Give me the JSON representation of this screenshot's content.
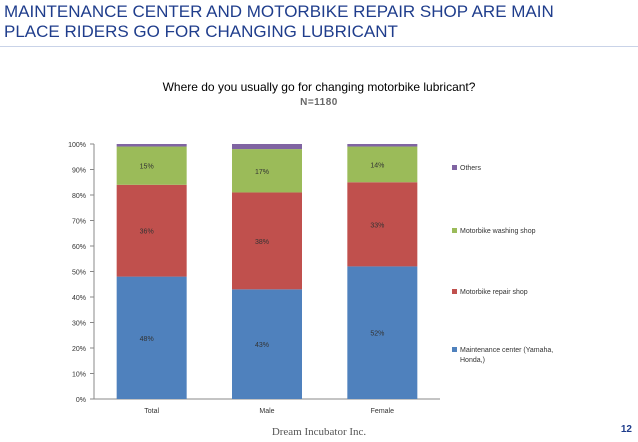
{
  "slide": {
    "title_line1": "MAINTENANCE CENTER AND MOTORBIKE REPAIR SHOP ARE MAIN",
    "title_line2": "PLACE RIDERS GO FOR CHANGING LUBRICANT",
    "question": "Where do you usually go for changing motorbike lubricant?",
    "sample_size": "N=1180",
    "footer": "Dream Incubator Inc.",
    "page_number": "12"
  },
  "chart_data": {
    "type": "bar",
    "stacked": true,
    "categories": [
      "Total",
      "Male",
      "Female"
    ],
    "ylim": [
      0,
      100
    ],
    "yticks": [
      0,
      10,
      20,
      30,
      40,
      50,
      60,
      70,
      80,
      90,
      100
    ],
    "ytick_labels": [
      "0%",
      "10%",
      "20%",
      "30%",
      "40%",
      "50%",
      "60%",
      "70%",
      "80%",
      "90%",
      "100%"
    ],
    "legend_position": "right",
    "series": [
      {
        "name": "Maintenance center (Yamaha, Honda,)",
        "legend_lines": [
          "Maintenance center (Yamaha,",
          "Honda,)"
        ],
        "color": "#4f81bd",
        "values": [
          48,
          43,
          52
        ],
        "labels": [
          "48%",
          "43%",
          "52%"
        ]
      },
      {
        "name": "Motorbike repair shop",
        "legend_lines": [
          "Motorbike repair shop"
        ],
        "color": "#c0504d",
        "values": [
          36,
          38,
          33
        ],
        "labels": [
          "36%",
          "38%",
          "33%"
        ]
      },
      {
        "name": "Motorbike washing shop",
        "legend_lines": [
          "Motorbike washing shop"
        ],
        "color": "#9bbb59",
        "values": [
          15,
          17,
          14
        ],
        "labels": [
          "15%",
          "17%",
          "14%"
        ]
      },
      {
        "name": "Others",
        "legend_lines": [
          "Others"
        ],
        "color": "#8064a2",
        "values": [
          1,
          2,
          1
        ],
        "labels": [
          "",
          "",
          ""
        ]
      }
    ]
  }
}
